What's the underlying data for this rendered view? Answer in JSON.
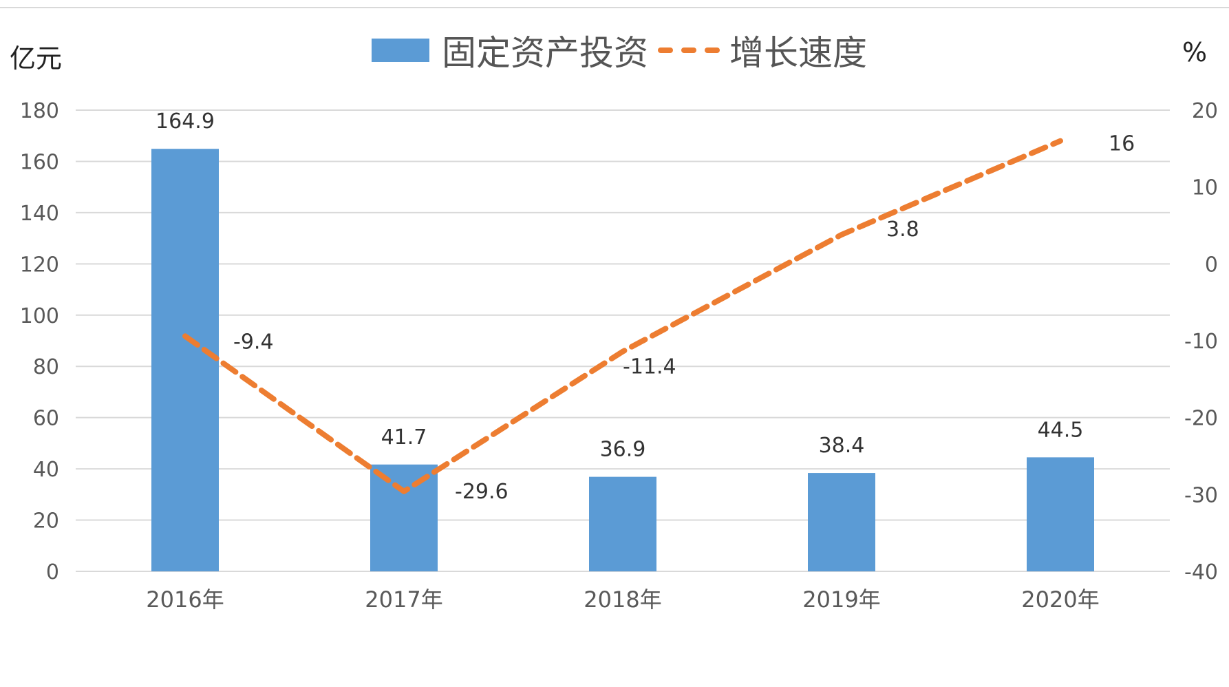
{
  "colors": {
    "bar": "#5b9bd5",
    "line": "#ed7d31",
    "grid": "#d9d9d9",
    "axis_text": "#595959",
    "label_text": "#333333"
  },
  "units": {
    "left": "亿元",
    "right": "%"
  },
  "legend": {
    "bar_label": "固定资产投资",
    "line_label": "增长速度"
  },
  "chart_data": {
    "type": "bar",
    "title": "",
    "categories": [
      "2016年",
      "2017年",
      "2018年",
      "2019年",
      "2020年"
    ],
    "series": [
      {
        "name": "固定资产投资",
        "type": "bar",
        "axis": "left",
        "values": [
          164.9,
          41.7,
          36.9,
          38.4,
          44.5
        ]
      },
      {
        "name": "增长速度",
        "type": "line",
        "style": "dashed",
        "axis": "right",
        "values": [
          -9.4,
          -29.6,
          -11.4,
          3.8,
          16
        ]
      }
    ],
    "y_left": {
      "label": "亿元",
      "ylim": [
        0,
        180
      ],
      "ticks": [
        0,
        20,
        40,
        60,
        80,
        100,
        120,
        140,
        160,
        180
      ]
    },
    "y_right": {
      "label": "%",
      "ylim": [
        -40,
        20
      ],
      "ticks": [
        -40,
        -30,
        -20,
        -10,
        0,
        10,
        20
      ]
    },
    "grid": true,
    "legend_position": "top"
  }
}
